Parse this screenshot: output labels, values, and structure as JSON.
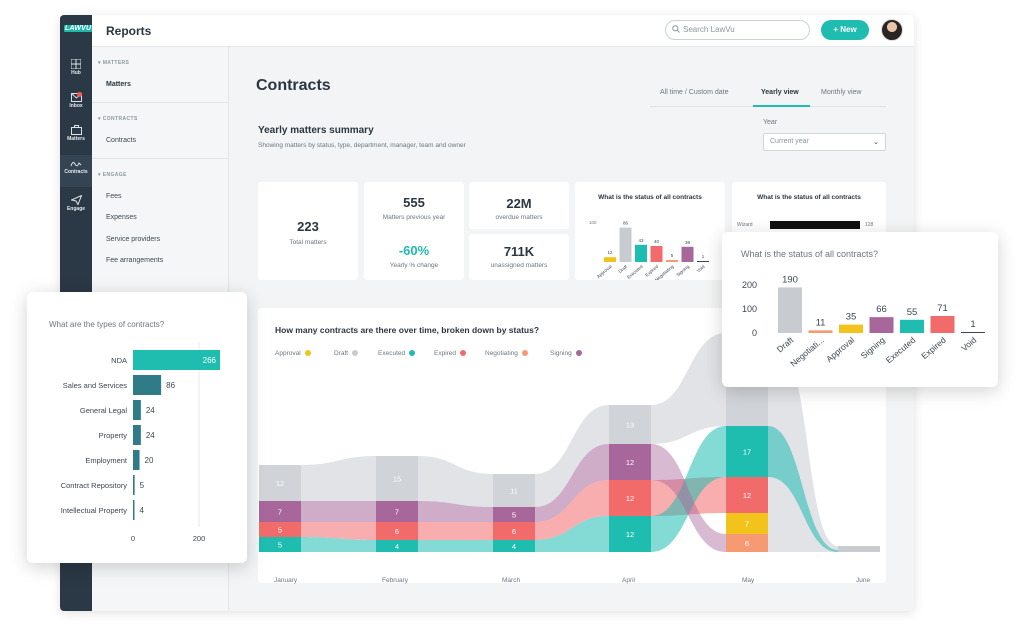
{
  "app": {
    "logo": "LAWVU",
    "page_title": "Reports",
    "search_placeholder": "Search LawVu",
    "new_button": "New"
  },
  "rail": [
    {
      "label": "Hub",
      "icon": "grid-icon"
    },
    {
      "label": "Inbox",
      "icon": "inbox-icon"
    },
    {
      "label": "Matters",
      "icon": "briefcase-icon"
    },
    {
      "label": "Contracts",
      "icon": "signature-icon"
    },
    {
      "label": "Engage",
      "icon": "send-icon"
    }
  ],
  "sidenav": {
    "matters_section": "MATTERS",
    "matters_items": [
      "Matters"
    ],
    "contracts_section": "CONTRACTS",
    "contracts_items": [
      "Contracts"
    ],
    "engage_section": "ENGAGE",
    "engage_items": [
      "Fees",
      "Expenses",
      "Service providers",
      "Fee arrangements"
    ]
  },
  "main": {
    "title": "Contracts",
    "tabs": [
      "All time / Custom date",
      "Yearly view",
      "Monthly view"
    ],
    "active_tab": "Yearly view",
    "summary_title": "Yearly matters summary",
    "summary_subtitle": "Showing matters by status, type, department, manager, team and owner",
    "year_label": "Year",
    "year_value": "Current year"
  },
  "stats": {
    "total_matters": {
      "value": "223",
      "label": "Total matters"
    },
    "prev_year": {
      "value": "555",
      "label": "Matters previous year"
    },
    "yearly_change": {
      "value": "-60%",
      "label": "Yearly % change"
    },
    "overdue": {
      "value": "22M",
      "label": "overdue matters"
    },
    "unassigned": {
      "value": "711K",
      "label": "unassigned matters"
    }
  },
  "mini_status_chart": {
    "title": "What is the status of all contracts",
    "ytick": "100",
    "categories": [
      "Approval",
      "Draft",
      "Executed",
      "Expired",
      "Negotiating",
      "Signing",
      "Void"
    ],
    "values": [
      12,
      86,
      43,
      40,
      5,
      38,
      1
    ]
  },
  "mini_right_card": {
    "title": "What is the status of all contracts",
    "row_label": "Wizard",
    "row_value": "128"
  },
  "colors": {
    "teal": "#1fbcb0",
    "draft_grey": "#c8ccd1",
    "yellow": "#f2c41b",
    "expired_red": "#f26b6b",
    "negotiating_orange": "#f59a72",
    "signing_purple": "#a8679b",
    "dark_teal": "#2f7b86"
  },
  "chart_data": [
    {
      "type": "bar",
      "orientation": "horizontal",
      "title": "What are the types of contracts?",
      "categories": [
        "NDA",
        "Sales and Services",
        "General Legal",
        "Property",
        "Employment",
        "Contract Repository",
        "Intellectual Property"
      ],
      "values": [
        266,
        86,
        24,
        24,
        20,
        5,
        4
      ],
      "xticks": [
        "0",
        "200"
      ],
      "xlim": [
        0,
        266
      ]
    },
    {
      "type": "bar",
      "title": "What is the status of all contracts?",
      "categories": [
        "Draft",
        "Negotiati...",
        "Approval",
        "Signing",
        "Executed",
        "Expired",
        "Void"
      ],
      "values": [
        190,
        11,
        35,
        66,
        55,
        71,
        1
      ],
      "yticks": [
        "0",
        "100",
        "200"
      ],
      "ylim": [
        0,
        200
      ]
    },
    {
      "type": "area",
      "title": "How many  contracts are there over time, broken down by status?",
      "x": [
        "January",
        "February",
        "March",
        "April",
        "May",
        "June"
      ],
      "series": [
        {
          "name": "Approval",
          "values": [
            null,
            null,
            null,
            null,
            7,
            null
          ]
        },
        {
          "name": "Draft",
          "values": [
            12,
            15,
            11,
            13,
            31,
            null
          ]
        },
        {
          "name": "Executed",
          "values": [
            5,
            4,
            4,
            12,
            17,
            null
          ]
        },
        {
          "name": "Expired",
          "values": [
            5,
            6,
            6,
            12,
            12,
            null
          ]
        },
        {
          "name": "Negotiating",
          "values": [
            null,
            null,
            null,
            null,
            6,
            null
          ]
        },
        {
          "name": "Signing",
          "values": [
            7,
            7,
            5,
            12,
            null,
            null
          ]
        }
      ],
      "legend": "top-left"
    }
  ]
}
